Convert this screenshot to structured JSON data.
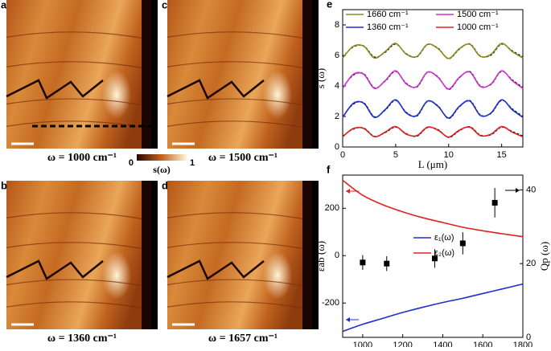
{
  "panels": [
    {
      "label": "a",
      "caption": "ω = 1000 cm⁻¹"
    },
    {
      "label": "b",
      "caption": "ω = 1360 cm⁻¹"
    },
    {
      "label": "c",
      "caption": "ω = 1500 cm⁻¹"
    },
    {
      "label": "d",
      "caption": "ω = 1657 cm⁻¹"
    }
  ],
  "colorbar": {
    "min": 0,
    "max": 1,
    "label": "s(ω)"
  },
  "chart_data": [
    {
      "type": "line",
      "panel": "e",
      "x": [
        0,
        1,
        2,
        3,
        4,
        5,
        6,
        7,
        8,
        9,
        10,
        11,
        12,
        13,
        14,
        15,
        16,
        17
      ],
      "series": [
        {
          "name": "1660 cm⁻¹",
          "color": "#8c8c1e",
          "values": [
            5.83,
            6.6,
            6.6,
            5.83,
            6.25,
            6.79,
            6.08,
            5.93,
            6.73,
            6.44,
            5.8,
            6.44,
            6.73,
            5.93,
            6.08,
            6.79,
            6.25,
            5.83
          ]
        },
        {
          "name": "1500 cm⁻¹",
          "color": "#cc33cc",
          "values": [
            3.84,
            4.76,
            4.76,
            3.84,
            4.34,
            4.99,
            4.13,
            3.96,
            4.91,
            4.56,
            3.8,
            4.56,
            4.91,
            3.96,
            4.13,
            4.99,
            4.34,
            3.84
          ]
        },
        {
          "name": "1360 cm⁻¹",
          "color": "#1f2fcc",
          "values": [
            1.94,
            2.86,
            2.86,
            1.94,
            2.44,
            3.09,
            2.23,
            2.06,
            3.01,
            2.66,
            1.9,
            2.66,
            3.01,
            2.06,
            2.23,
            3.09,
            2.44,
            1.94
          ]
        },
        {
          "name": "1000 cm⁻¹",
          "color": "#e02020",
          "values": [
            0.67,
            1.21,
            1.21,
            0.67,
            0.97,
            1.34,
            0.84,
            0.74,
            1.3,
            1.1,
            0.65,
            1.1,
            1.3,
            0.74,
            0.84,
            1.34,
            0.97,
            0.67
          ]
        }
      ],
      "fits": [
        {
          "color": "#000",
          "values": [
            5.9,
            6.55,
            6.62,
            5.9,
            6.2,
            6.74,
            6.12,
            5.9,
            6.7,
            6.48,
            5.78,
            6.4,
            6.76,
            5.96,
            6.02,
            6.74,
            6.3,
            5.9
          ]
        },
        {
          "color": "#000",
          "values": [
            3.9,
            4.7,
            4.8,
            3.88,
            4.3,
            4.95,
            4.18,
            3.92,
            4.88,
            4.6,
            3.76,
            4.52,
            4.95,
            4.0,
            4.1,
            4.95,
            4.4,
            3.9
          ]
        },
        {
          "color": "#000",
          "values": [
            2.0,
            2.8,
            2.9,
            1.98,
            2.4,
            3.05,
            2.28,
            2.02,
            2.98,
            2.7,
            1.86,
            2.62,
            3.05,
            2.1,
            2.2,
            3.05,
            2.5,
            2.0
          ]
        },
        {
          "color": "#000",
          "values": [
            0.72,
            1.17,
            1.24,
            0.7,
            0.93,
            1.3,
            0.88,
            0.7,
            1.27,
            1.14,
            0.62,
            1.06,
            1.33,
            0.78,
            0.8,
            1.3,
            1.02,
            0.72
          ]
        }
      ],
      "xlim": [
        0,
        17
      ],
      "ylim": [
        0,
        9
      ],
      "xticks": [
        0,
        5,
        10,
        15
      ],
      "yticks": [
        0,
        2,
        4,
        6,
        8
      ],
      "xlabel": "L (μm)",
      "ylabel": "s (ω)"
    },
    {
      "type": "line",
      "panel": "f",
      "x": [
        900,
        1000,
        1100,
        1200,
        1300,
        1400,
        1500,
        1600,
        1700,
        1800
      ],
      "series": [
        {
          "name": "ε₁(ω)",
          "color": "#1f2fcc",
          "values": [
            -320,
            -290,
            -265,
            -240,
            -218,
            -198,
            -180,
            -160,
            -140,
            -120
          ]
        },
        {
          "name": "ε₂(ω)",
          "color": "#e02020",
          "values": [
            318,
            255,
            215,
            185,
            160,
            140,
            120,
            105,
            92,
            80
          ]
        }
      ],
      "scatter": {
        "axis": "y2",
        "color": "#000",
        "x": [
          1000,
          1120,
          1360,
          1500,
          1660
        ],
        "values": [
          20.3,
          20,
          21.4,
          25.5,
          36.5
        ],
        "errors": [
          2,
          2,
          2.5,
          3,
          4
        ]
      },
      "xlim": [
        900,
        1800
      ],
      "ylim": [
        -345,
        340
      ],
      "y2lim": [
        0,
        44
      ],
      "xticks": [
        1000,
        1200,
        1400,
        1600,
        1800
      ],
      "yticks": [
        -200,
        0,
        200
      ],
      "y2ticks": [
        0,
        20,
        40
      ],
      "xlabel": "ω (cm⁻¹)",
      "ylabel": "εab (ω)",
      "y2label": "Qp (ω)"
    }
  ]
}
